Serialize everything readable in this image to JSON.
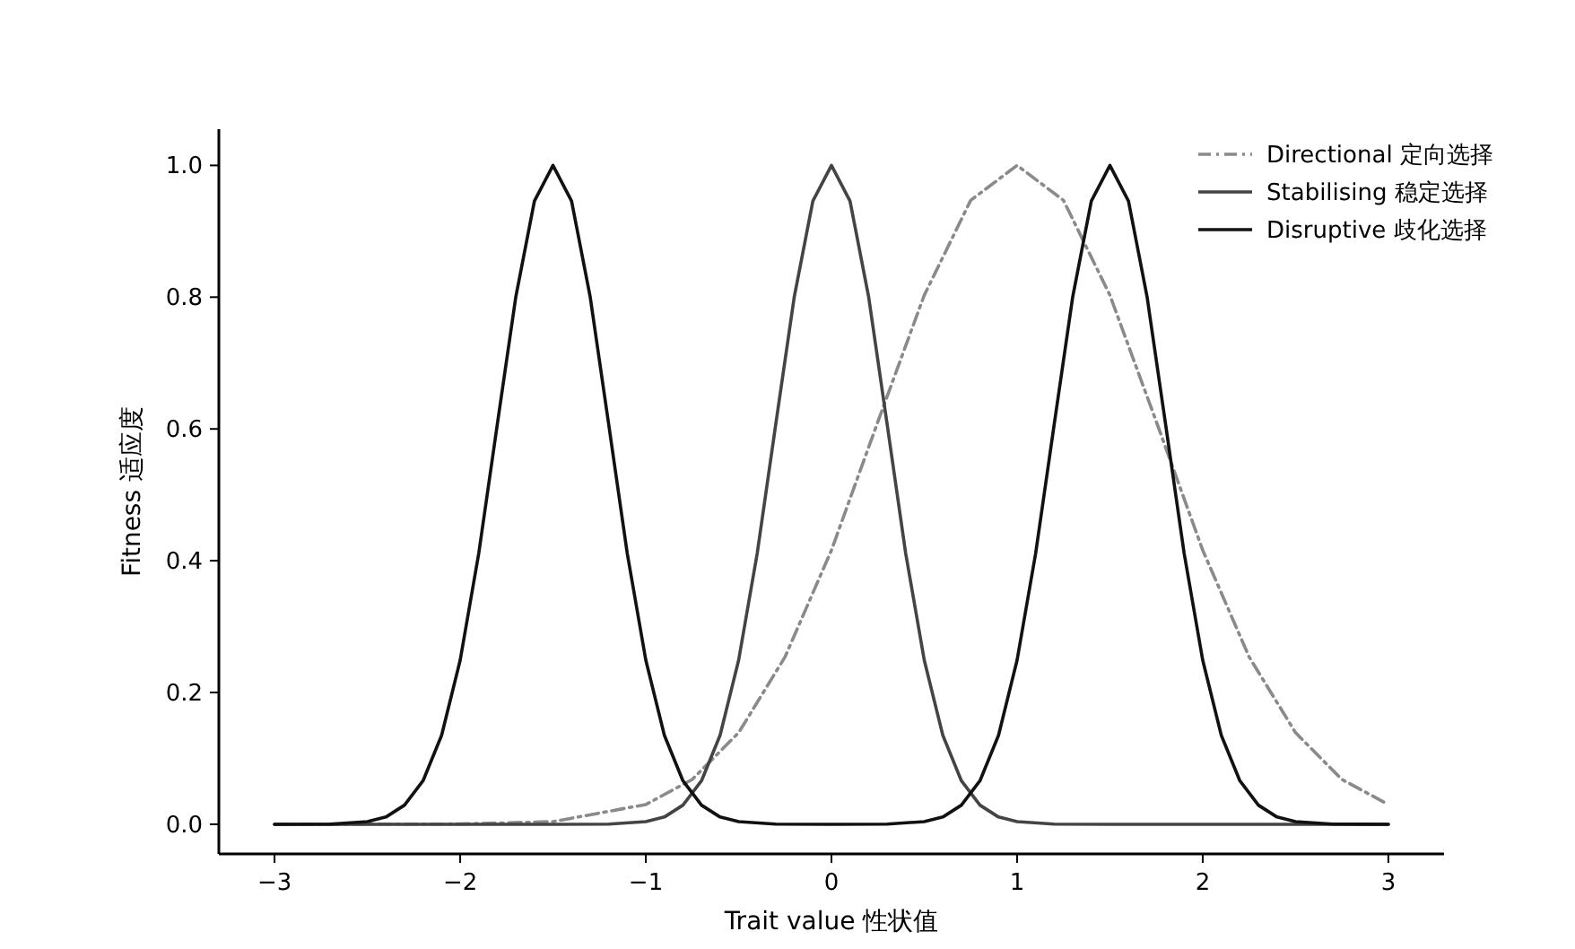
{
  "chart_data": {
    "type": "line",
    "xlabel": "Trait value 性状值",
    "ylabel": "Fitness 适应度",
    "xlim": [
      -3.3,
      3.3
    ],
    "ylim": [
      -0.045,
      1.055
    ],
    "xticks": [
      {
        "value": -3,
        "label": "−3"
      },
      {
        "value": -2,
        "label": "−2"
      },
      {
        "value": -1,
        "label": "−1"
      },
      0,
      1,
      2,
      3
    ],
    "yticks": [
      {
        "value": 0,
        "label": "0.0"
      },
      {
        "value": 0.2,
        "label": "0.2"
      },
      {
        "value": 0.4,
        "label": "0.4"
      },
      {
        "value": 0.6,
        "label": "0.6"
      },
      {
        "value": 0.8,
        "label": "0.8"
      },
      {
        "value": 1,
        "label": "1.0"
      }
    ],
    "legend": "top right",
    "marker": "none",
    "series": [
      {
        "name": "Directional 定向选择",
        "color": "#8a8a8a",
        "line_style": "dashed",
        "x": [
          -3,
          -2,
          -1.5,
          -1,
          -0.75,
          -0.5,
          -0.25,
          0,
          0.25,
          0.5,
          0.75,
          1,
          1.25,
          1.5,
          1.75,
          2,
          2.25,
          2.5,
          2.75,
          3
        ],
        "values": [
          0,
          0.0004,
          0.004,
          0.03,
          0.068,
          0.139,
          0.254,
          0.416,
          0.611,
          0.803,
          0.947,
          1,
          0.947,
          0.803,
          0.611,
          0.416,
          0.254,
          0.139,
          0.068,
          0.03
        ]
      },
      {
        "name": "Stabilising 稳定选择",
        "color": "#444444",
        "line_style": "solid",
        "x": [
          -3,
          -2,
          -1.5,
          -1.2,
          -1,
          -0.9,
          -0.8,
          -0.7,
          -0.6,
          -0.5,
          -0.4,
          -0.3,
          -0.2,
          -0.1,
          0,
          0.1,
          0.2,
          0.3,
          0.4,
          0.5,
          0.6,
          0.7,
          0.8,
          0.9,
          1,
          1.2,
          1.5,
          2,
          3
        ],
        "values": [
          0,
          0,
          0,
          0.0003,
          0.004,
          0.011,
          0.029,
          0.066,
          0.135,
          0.249,
          0.411,
          0.607,
          0.801,
          0.946,
          1,
          0.946,
          0.801,
          0.607,
          0.411,
          0.249,
          0.135,
          0.066,
          0.029,
          0.011,
          0.004,
          0.0003,
          0,
          0,
          0
        ]
      },
      {
        "name": "Disruptive 歧化选择",
        "color": "#111111",
        "line_style": "solid",
        "x": [
          -3,
          -2.7,
          -2.5,
          -2.4,
          -2.3,
          -2.2,
          -2.1,
          -2,
          -1.9,
          -1.8,
          -1.7,
          -1.6,
          -1.5,
          -1.4,
          -1.3,
          -1.2,
          -1.1,
          -1,
          -0.9,
          -0.8,
          -0.7,
          -0.6,
          -0.5,
          -0.3,
          0,
          0.3,
          0.5,
          0.6,
          0.7,
          0.8,
          0.9,
          1,
          1.1,
          1.2,
          1.3,
          1.4,
          1.5,
          1.6,
          1.7,
          1.8,
          1.9,
          2,
          2.1,
          2.2,
          2.3,
          2.4,
          2.5,
          2.7,
          3
        ],
        "values": [
          0,
          0.0003,
          0.004,
          0.011,
          0.029,
          0.066,
          0.135,
          0.249,
          0.411,
          0.607,
          0.801,
          0.946,
          1,
          0.946,
          0.801,
          0.607,
          0.411,
          0.249,
          0.135,
          0.066,
          0.029,
          0.011,
          0.004,
          0.0003,
          0,
          0.0003,
          0.004,
          0.011,
          0.029,
          0.066,
          0.135,
          0.249,
          0.411,
          0.607,
          0.801,
          0.946,
          1,
          0.946,
          0.801,
          0.607,
          0.411,
          0.249,
          0.135,
          0.066,
          0.029,
          0.011,
          0.004,
          0.0003,
          0
        ]
      }
    ]
  }
}
